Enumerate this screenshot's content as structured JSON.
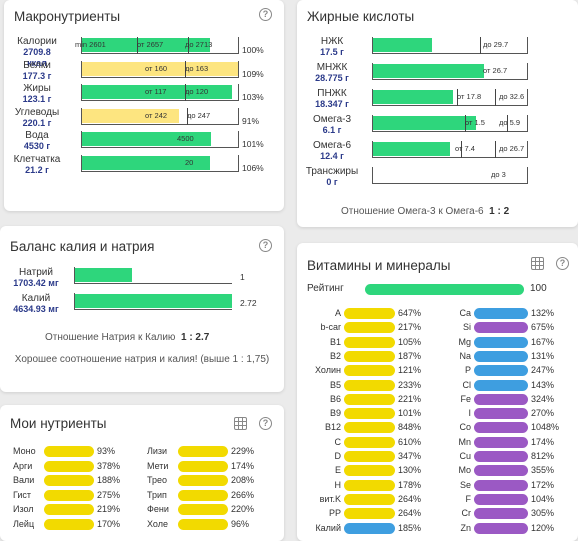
{
  "macro": {
    "title": "Макронутриенты",
    "rows": [
      {
        "name": "Калории",
        "val": "2709.8",
        "unit": "ккал",
        "fill_pct": 82,
        "type": "g",
        "texts": [
          {
            "t": "min 2601",
            "x": 70
          },
          {
            "t": "от 2657",
            "x": 132
          },
          {
            "t": "до 2713",
            "x": 180
          }
        ],
        "marks": [
          132,
          183
        ],
        "pct": "100%"
      },
      {
        "name": "Белки",
        "val": "177.3 г",
        "unit": "",
        "fill_pct": 100,
        "type": "y",
        "texts": [
          {
            "t": "от 160",
            "x": 140
          },
          {
            "t": "до 163",
            "x": 180
          }
        ],
        "marks": [
          180
        ],
        "pct": "109%"
      },
      {
        "name": "Жиры",
        "val": "123.1 г",
        "unit": "",
        "fill_pct": 96,
        "type": "g",
        "texts": [
          {
            "t": "от 117",
            "x": 140
          },
          {
            "t": "до 120",
            "x": 180
          }
        ],
        "marks": [
          180
        ],
        "pct": "103%"
      },
      {
        "name": "Углеводы",
        "val": "220.1 г",
        "unit": "",
        "fill_pct": 62,
        "type": "y",
        "texts": [
          {
            "t": "от 242",
            "x": 140
          },
          {
            "t": "до 247",
            "x": 182
          }
        ],
        "marks": [
          182
        ],
        "pct": "91%"
      },
      {
        "name": "Вода",
        "val": "4530 г",
        "unit": "",
        "fill_pct": 83,
        "type": "g",
        "texts": [
          {
            "t": "4500",
            "x": 172
          }
        ],
        "marks": [],
        "pct": "101%"
      },
      {
        "name": "Клетчатка",
        "val": "21.2 г",
        "unit": "",
        "fill_pct": 82,
        "type": "g",
        "texts": [
          {
            "t": "20",
            "x": 180
          }
        ],
        "marks": [],
        "pct": "106%"
      }
    ]
  },
  "fatty": {
    "title": "Жирные кислоты",
    "ratio_text": "Отношение Омега-3 к Омега-6",
    "ratio_val": "1 : 2",
    "rows": [
      {
        "name": "НЖК",
        "val": "17.5 г",
        "fill_pct": 38,
        "texts": [
          {
            "t": "до 29.7",
            "x": 110
          }
        ],
        "marks": [
          107
        ]
      },
      {
        "name": "МНЖК",
        "val": "28.775 г",
        "fill_pct": 72,
        "texts": [
          {
            "t": "от 26.7",
            "x": 110
          }
        ],
        "marks": []
      },
      {
        "name": "ПНЖК",
        "val": "18.347 г",
        "fill_pct": 52,
        "texts": [
          {
            "t": "от 17.8",
            "x": 84
          },
          {
            "t": "до 32.6",
            "x": 126
          }
        ],
        "marks": [
          84,
          122
        ]
      },
      {
        "name": "Омега-3",
        "val": "6.1 г",
        "fill_pct": 67,
        "texts": [
          {
            "t": "от 1.5",
            "x": 92
          },
          {
            "t": "до 5.9",
            "x": 126
          }
        ],
        "marks": [
          92,
          134
        ]
      },
      {
        "name": "Омега-6",
        "val": "12.4 г",
        "fill_pct": 50,
        "texts": [
          {
            "t": "от 7.4",
            "x": 82
          },
          {
            "t": "до 26.7",
            "x": 126
          }
        ],
        "marks": [
          88,
          122
        ]
      },
      {
        "name": "Трансжиры",
        "val": "0 г",
        "fill_pct": 0,
        "texts": [
          {
            "t": "до 3",
            "x": 118
          }
        ],
        "marks": []
      }
    ]
  },
  "balance": {
    "title": "Баланс калия и натрия",
    "rows": [
      {
        "name": "Натрий",
        "val": "1703.42 мг",
        "fill_pct": 36,
        "num": "1"
      },
      {
        "name": "Калий",
        "val": "4634.93 мг",
        "fill_pct": 100,
        "num": "2.72"
      }
    ],
    "ratio_text": "Отношение Натрия к Калию",
    "ratio_val": "1 : 2.7",
    "note": "Хорошее соотношение натрия и калия! (выше 1 : 1,75)"
  },
  "my": {
    "title": "Мои нутриенты",
    "items": [
      {
        "n": "Моно",
        "p": "93%"
      },
      {
        "n": "Лизи",
        "p": "229%"
      },
      {
        "n": "Арги",
        "p": "378%"
      },
      {
        "n": "Мети",
        "p": "174%"
      },
      {
        "n": "Вали",
        "p": "188%"
      },
      {
        "n": "Трео",
        "p": "208%"
      },
      {
        "n": "Гист",
        "p": "275%"
      },
      {
        "n": "Трип",
        "p": "266%"
      },
      {
        "n": "Изол",
        "p": "219%"
      },
      {
        "n": "Фени",
        "p": "220%"
      },
      {
        "n": "Лейц",
        "p": "170%"
      },
      {
        "n": "Холе",
        "p": "96%"
      }
    ]
  },
  "vit": {
    "title": "Витамины и минералы",
    "rating_label": "Рейтинг",
    "rating_val": "100",
    "left": [
      {
        "n": "A",
        "p": "647%",
        "c": "#f2da00"
      },
      {
        "n": "b-car",
        "p": "217%",
        "c": "#f2da00"
      },
      {
        "n": "B1",
        "p": "105%",
        "c": "#f2da00"
      },
      {
        "n": "B2",
        "p": "187%",
        "c": "#f2da00"
      },
      {
        "n": "Холин",
        "p": "121%",
        "c": "#f2da00"
      },
      {
        "n": "B5",
        "p": "233%",
        "c": "#f2da00"
      },
      {
        "n": "B6",
        "p": "221%",
        "c": "#f2da00"
      },
      {
        "n": "B9",
        "p": "101%",
        "c": "#f2da00"
      },
      {
        "n": "B12",
        "p": "848%",
        "c": "#f2da00"
      },
      {
        "n": "C",
        "p": "610%",
        "c": "#f2da00"
      },
      {
        "n": "D",
        "p": "347%",
        "c": "#f2da00"
      },
      {
        "n": "E",
        "p": "130%",
        "c": "#f2da00"
      },
      {
        "n": "H",
        "p": "178%",
        "c": "#f2da00"
      },
      {
        "n": "вит.K",
        "p": "264%",
        "c": "#f2da00"
      },
      {
        "n": "PP",
        "p": "264%",
        "c": "#f2da00"
      },
      {
        "n": "Калий",
        "p": "185%",
        "c": "#3e9ee0"
      }
    ],
    "right": [
      {
        "n": "Ca",
        "p": "132%",
        "c": "#3e9ee0"
      },
      {
        "n": "Si",
        "p": "675%",
        "c": "#9b59c4"
      },
      {
        "n": "Mg",
        "p": "167%",
        "c": "#3e9ee0"
      },
      {
        "n": "Na",
        "p": "131%",
        "c": "#3e9ee0"
      },
      {
        "n": "P",
        "p": "247%",
        "c": "#3e9ee0"
      },
      {
        "n": "Cl",
        "p": "143%",
        "c": "#3e9ee0"
      },
      {
        "n": "Fe",
        "p": "324%",
        "c": "#9b59c4"
      },
      {
        "n": "I",
        "p": "270%",
        "c": "#9b59c4"
      },
      {
        "n": "Co",
        "p": "1048%",
        "c": "#9b59c4"
      },
      {
        "n": "Mn",
        "p": "174%",
        "c": "#9b59c4"
      },
      {
        "n": "Cu",
        "p": "812%",
        "c": "#9b59c4"
      },
      {
        "n": "Mo",
        "p": "355%",
        "c": "#9b59c4"
      },
      {
        "n": "Se",
        "p": "172%",
        "c": "#9b59c4"
      },
      {
        "n": "F",
        "p": "104%",
        "c": "#9b59c4"
      },
      {
        "n": "Cr",
        "p": "305%",
        "c": "#9b59c4"
      },
      {
        "n": "Zn",
        "p": "120%",
        "c": "#9b59c4"
      }
    ]
  }
}
